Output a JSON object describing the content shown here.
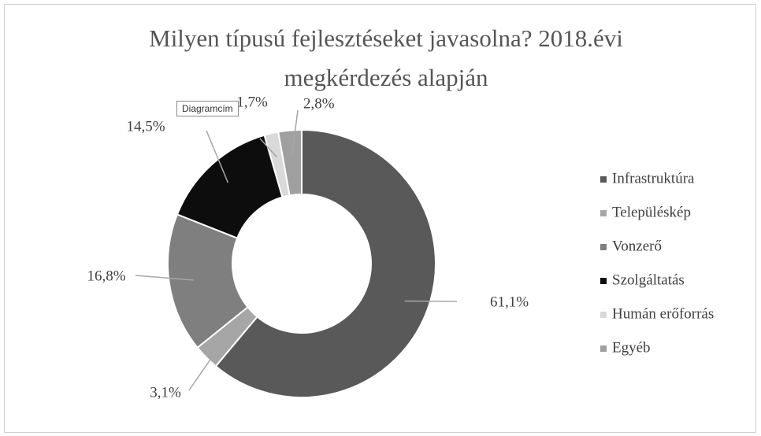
{
  "chart_data": {
    "type": "donut",
    "title": "Milyen típusú fejlesztéseket javasolna? 2018.évi megkérdezés alapján",
    "categories": [
      "Infrastruktúra",
      "Településkép",
      "Vonzerő",
      "Szolgáltatás",
      "Humán erőforrás",
      "Egyéb"
    ],
    "values": [
      61.1,
      3.1,
      16.8,
      14.5,
      1.7,
      2.8
    ],
    "value_labels": [
      "61,1%",
      "3,1%",
      "16,8%",
      "14,5%",
      "1,7%",
      "2,8%"
    ],
    "colors": [
      "#595959",
      "#a6a6a6",
      "#7f7f7f",
      "#0d0d0d",
      "#d9d9d9",
      "#a0a0a0"
    ],
    "legend": "right",
    "tooltip": "Diagramcím"
  }
}
